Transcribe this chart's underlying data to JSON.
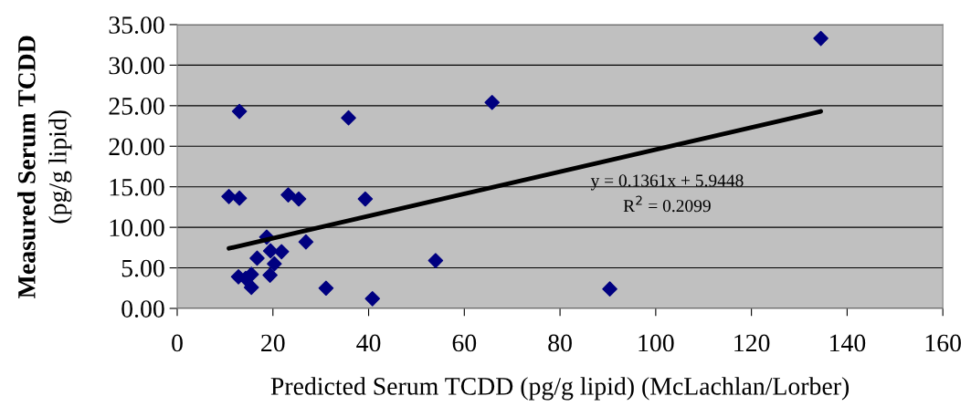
{
  "chart_data": {
    "type": "scatter",
    "xlabel": "Predicted Serum TCDD (pg/g lipid) (McLachlan/Lorber)",
    "ylabel": "Measured Serum TCDD\n(pg/g lipid)",
    "xlim": [
      0,
      160
    ],
    "xticks": [
      0,
      20,
      40,
      60,
      80,
      100,
      120,
      140,
      160
    ],
    "ylim": [
      0,
      35
    ],
    "yticks": [
      {
        "value": 0,
        "label": "0.00"
      },
      {
        "value": 5,
        "label": "5.00"
      },
      {
        "value": 10,
        "label": "10.00"
      },
      {
        "value": 15,
        "label": "15.00"
      },
      {
        "value": 20,
        "label": "20.00"
      },
      {
        "value": 25,
        "label": "25.00"
      },
      {
        "value": 30,
        "label": "30.00"
      },
      {
        "value": 35,
        "label": "35.00"
      }
    ],
    "grid": "y",
    "marker": "diamond",
    "series": [
      {
        "color": "#000080",
        "x": [
          134.5,
          65.8,
          13.0,
          35.8,
          10.8,
          13.0,
          23.2,
          25.4,
          39.3,
          18.7,
          26.9,
          16.7,
          19.5,
          21.8,
          20.3,
          12.8,
          15.5,
          14.3,
          19.4,
          15.5,
          31.1,
          40.8,
          54.0,
          90.4
        ],
        "values": [
          33.3,
          25.4,
          24.3,
          23.5,
          13.8,
          13.6,
          14.0,
          13.5,
          13.5,
          8.8,
          8.2,
          6.2,
          7.1,
          7.0,
          5.5,
          3.9,
          4.2,
          3.7,
          4.1,
          2.6,
          2.5,
          1.2,
          5.9,
          2.4
        ]
      },
      {
        "type": "line",
        "color": "#000000",
        "marker": "none",
        "line_style": "solid",
        "x": [
          10.8,
          134.5
        ],
        "values": [
          7.4,
          24.3
        ]
      }
    ],
    "annotations": [
      "y = 0.1361x + 5.9448\nR$^{2}$ = 0.2099"
    ]
  }
}
